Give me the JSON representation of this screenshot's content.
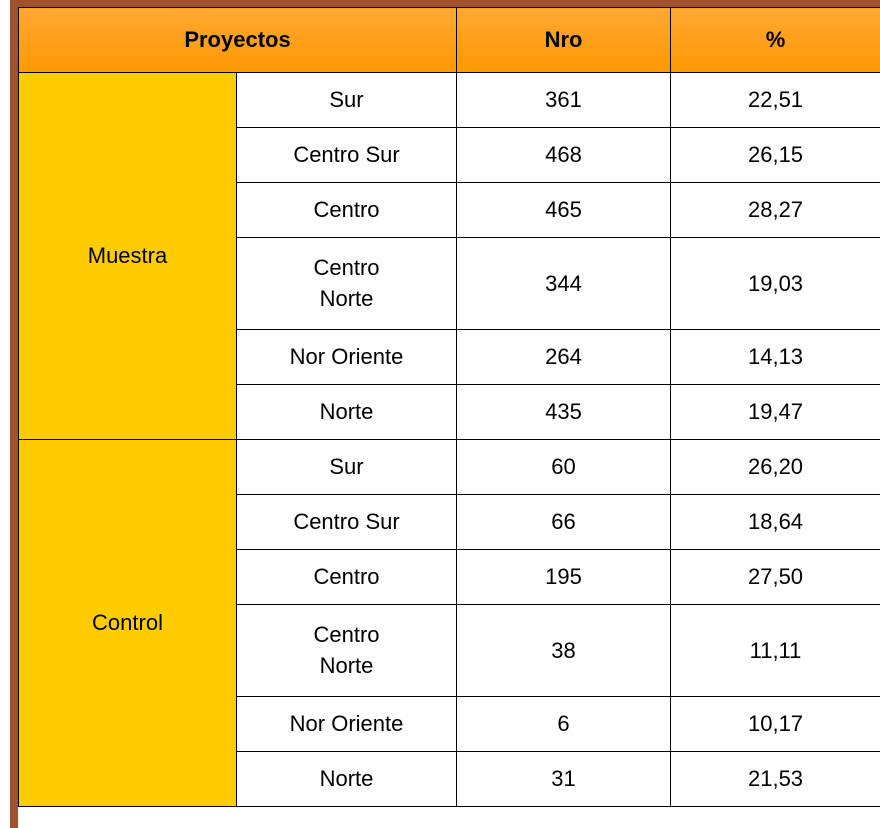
{
  "table": {
    "header": [
      "Proyectos",
      "Nro",
      "%"
    ],
    "groups": [
      {
        "name": "Muestra",
        "rows": [
          [
            "Sur",
            "361",
            "22,51"
          ],
          [
            "Centro Sur",
            "468",
            "26,15"
          ],
          [
            "Centro",
            "465",
            "28,27"
          ],
          [
            "Centro Norte",
            "344",
            "19,03"
          ],
          [
            "Nor Oriente",
            "264",
            "14,13"
          ],
          [
            "Norte",
            "435",
            "19,47"
          ]
        ]
      },
      {
        "name": "Control",
        "rows": [
          [
            "Sur",
            "60",
            "26,20"
          ],
          [
            "Centro Sur",
            "66",
            "18,64"
          ],
          [
            "Centro",
            "195",
            "27,50"
          ],
          [
            "Centro Norte",
            "38",
            "11,11"
          ],
          [
            "Nor Oriente",
            "6",
            "10,17"
          ],
          [
            "Norte",
            "31",
            "21,53"
          ]
        ]
      }
    ]
  }
}
